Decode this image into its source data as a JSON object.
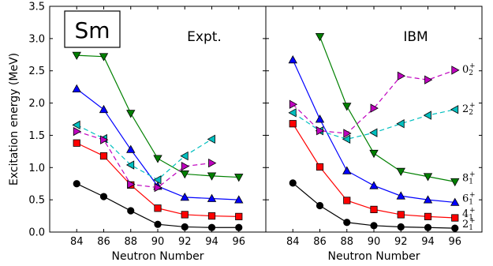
{
  "chart_data": {
    "type": "line",
    "element_label": "Sm",
    "ylabel": "Excitation energy (MeV)",
    "xlabel": "Neutron Number",
    "ylim": [
      0.0,
      3.5
    ],
    "yticks": [
      "0.0",
      "0.5",
      "1.0",
      "1.5",
      "2.0",
      "2.5",
      "3.0",
      "3.5"
    ],
    "xlim": [
      82,
      98
    ],
    "xticks": [
      "84",
      "86",
      "88",
      "90",
      "92",
      "94",
      "96"
    ],
    "colors": {
      "2_1": "#000000",
      "4_1": "#ff0000",
      "6_1": "#0000ff",
      "8_1": "#008000",
      "2_2": "#00bfbf",
      "0_2": "#bf00bf"
    },
    "level_labels": [
      {
        "key": "0_2",
        "base": "0",
        "sub": "2",
        "sup": "+",
        "y": 2.52
      },
      {
        "key": "2_2",
        "base": "2",
        "sub": "2",
        "sup": "+",
        "y": 1.91
      },
      {
        "key": "8_1",
        "base": "8",
        "sub": "1",
        "sup": "+",
        "y": 0.84
      },
      {
        "key": "6_1",
        "base": "6",
        "sub": "1",
        "sup": "+",
        "y": 0.52
      },
      {
        "key": "4_1",
        "base": "4",
        "sub": "1",
        "sup": "+",
        "y": 0.28
      },
      {
        "key": "2_1",
        "base": "2",
        "sub": "1",
        "sup": "+",
        "y": 0.12
      }
    ],
    "panels": [
      {
        "label": "Expt.",
        "series": [
          {
            "key": "2_1",
            "marker": "circle",
            "dash": false,
            "x": [
              84,
              86,
              88,
              90,
              92,
              94,
              96
            ],
            "y": [
              0.75,
              0.55,
              0.33,
              0.12,
              0.08,
              0.07,
              0.07
            ]
          },
          {
            "key": "4_1",
            "marker": "square",
            "dash": false,
            "x": [
              84,
              86,
              88,
              90,
              92,
              94,
              96
            ],
            "y": [
              1.38,
              1.18,
              0.73,
              0.37,
              0.27,
              0.25,
              0.24
            ]
          },
          {
            "key": "6_1",
            "marker": "triangle-up",
            "dash": false,
            "x": [
              84,
              86,
              88,
              90,
              92,
              94,
              96
            ],
            "y": [
              2.22,
              1.9,
              1.28,
              0.71,
              0.54,
              0.52,
              0.5
            ]
          },
          {
            "key": "8_1",
            "marker": "triangle-down",
            "dash": false,
            "x": [
              84,
              86,
              88,
              90,
              92,
              94,
              96
            ],
            "y": [
              2.74,
              2.72,
              1.84,
              1.14,
              0.9,
              0.87,
              0.85
            ]
          },
          {
            "key": "2_2",
            "marker": "triangle-left",
            "dash": true,
            "x": [
              84,
              86,
              88,
              90,
              92,
              94
            ],
            "y": [
              1.66,
              1.45,
              1.04,
              0.81,
              1.18,
              1.44
            ]
          },
          {
            "key": "0_2",
            "marker": "triangle-right",
            "dash": true,
            "x": [
              84,
              86,
              88,
              90,
              92,
              94
            ],
            "y": [
              1.56,
              1.43,
              0.74,
              0.69,
              1.02,
              1.07
            ]
          }
        ]
      },
      {
        "label": "IBM",
        "series": [
          {
            "key": "2_1",
            "marker": "circle",
            "dash": false,
            "x": [
              84,
              86,
              88,
              90,
              92,
              94,
              96
            ],
            "y": [
              0.76,
              0.41,
              0.15,
              0.1,
              0.08,
              0.07,
              0.06
            ]
          },
          {
            "key": "4_1",
            "marker": "square",
            "dash": false,
            "x": [
              84,
              86,
              88,
              90,
              92,
              94,
              96
            ],
            "y": [
              1.68,
              1.01,
              0.49,
              0.35,
              0.27,
              0.24,
              0.22
            ]
          },
          {
            "key": "6_1",
            "marker": "triangle-up",
            "dash": false,
            "x": [
              84,
              86,
              88,
              90,
              92,
              94,
              96
            ],
            "y": [
              2.67,
              1.75,
              0.95,
              0.72,
              0.56,
              0.5,
              0.46
            ]
          },
          {
            "key": "8_1",
            "marker": "triangle-down",
            "dash": false,
            "x": [
              86,
              88,
              90,
              92,
              94,
              96
            ],
            "y": [
              3.03,
              1.95,
              1.22,
              0.94,
              0.86,
              0.78
            ]
          },
          {
            "key": "2_2",
            "marker": "triangle-left",
            "dash": true,
            "x": [
              84,
              86,
              88,
              90,
              92,
              94,
              96
            ],
            "y": [
              1.85,
              1.57,
              1.44,
              1.54,
              1.68,
              1.81,
              1.9
            ]
          },
          {
            "key": "0_2",
            "marker": "triangle-right",
            "dash": true,
            "x": [
              84,
              86,
              88,
              90,
              92,
              94,
              96
            ],
            "y": [
              1.98,
              1.57,
              1.53,
              1.92,
              2.42,
              2.36,
              2.51
            ]
          }
        ]
      }
    ]
  }
}
